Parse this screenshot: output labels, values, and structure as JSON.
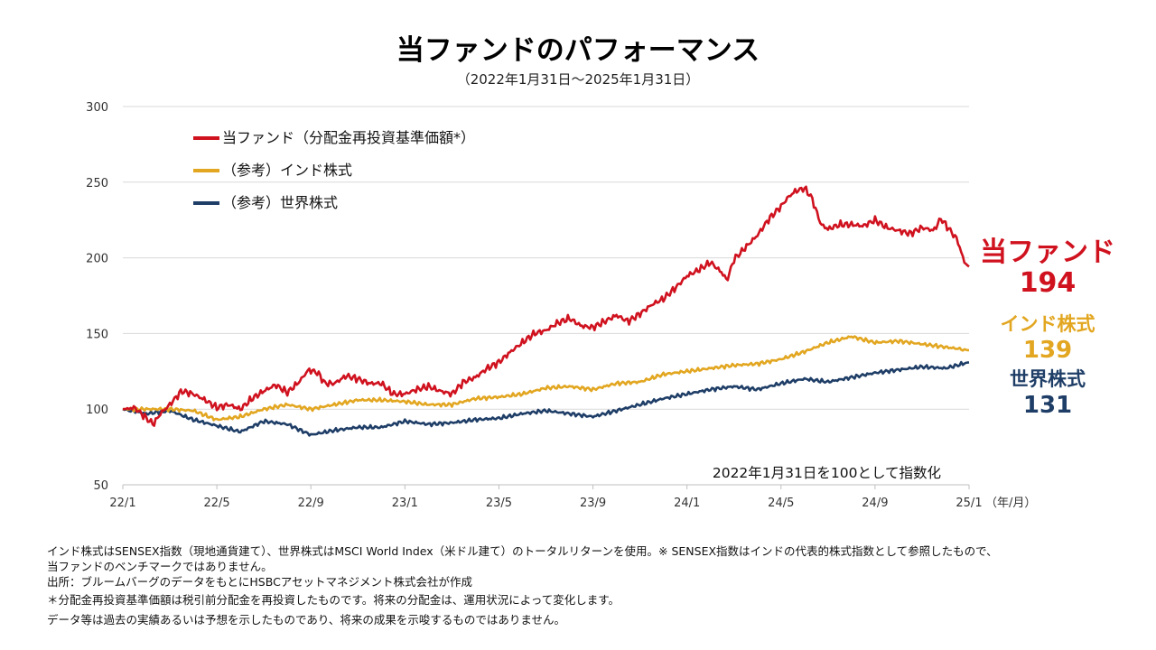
{
  "title": "当ファンドのパフォーマンス",
  "subtitle": "（2022年1月31日～2025年1月31日）",
  "colors": {
    "fund": "#d0121f",
    "india": "#e2a620",
    "world": "#1f3e67",
    "grid": "#d9d9d9",
    "axis": "#bfbfbf"
  },
  "chart_data": {
    "type": "line",
    "ylim": [
      50,
      300
    ],
    "yticks": [
      50,
      100,
      150,
      200,
      250,
      300
    ],
    "xlim": [
      0,
      36
    ],
    "xticks": [
      {
        "x": 0,
        "label": "22/1"
      },
      {
        "x": 4,
        "label": "22/5"
      },
      {
        "x": 8,
        "label": "22/9"
      },
      {
        "x": 12,
        "label": "23/1"
      },
      {
        "x": 16,
        "label": "23/5"
      },
      {
        "x": 20,
        "label": "23/9"
      },
      {
        "x": 24,
        "label": "24/1"
      },
      {
        "x": 28,
        "label": "24/5"
      },
      {
        "x": 32,
        "label": "24/9"
      },
      {
        "x": 36,
        "label": "25/1"
      }
    ],
    "xunit_label": "（年/月）",
    "note": "2022年1月31日を100として指数化",
    "series": [
      {
        "key": "fund",
        "name": "当ファンド（分配金再投資基準価額*）",
        "end_name": "当ファンド",
        "end_value": "194",
        "x": [
          0,
          0.5,
          1.0,
          1.3,
          1.6,
          2.0,
          2.5,
          3.0,
          3.5,
          4.0,
          4.5,
          5.0,
          5.5,
          6.0,
          6.5,
          7.0,
          7.5,
          7.9,
          8.3,
          8.6,
          9.0,
          9.5,
          10.0,
          10.5,
          11.0,
          11.5,
          12.0,
          12.5,
          13.0,
          13.5,
          14.0,
          14.5,
          15.0,
          15.5,
          16.0,
          16.5,
          17.0,
          17.5,
          18.0,
          18.5,
          19.0,
          19.5,
          20.0,
          20.5,
          21.0,
          21.5,
          22.0,
          22.5,
          23.0,
          23.5,
          24.0,
          24.5,
          25.0,
          25.5,
          25.7,
          26.0,
          26.5,
          27.0,
          27.5,
          28.0,
          28.3,
          28.6,
          29.0,
          29.3,
          29.7,
          30.0,
          30.5,
          31.0,
          31.5,
          32.0,
          32.5,
          33.0,
          33.5,
          34.0,
          34.5,
          34.8,
          35.2,
          35.5,
          35.8,
          36.0
        ],
        "values": [
          100,
          101,
          94,
          90,
          97,
          103,
          112,
          110,
          106,
          101,
          103,
          100,
          107,
          112,
          116,
          111,
          118,
          126,
          124,
          117,
          117,
          122,
          120,
          117,
          117,
          110,
          110,
          113,
          115,
          112,
          110,
          118,
          121,
          127,
          131,
          138,
          144,
          150,
          152,
          157,
          160,
          155,
          154,
          158,
          162,
          158,
          163,
          169,
          173,
          180,
          188,
          192,
          197,
          190,
          185,
          199,
          207,
          215,
          226,
          234,
          240,
          244,
          246,
          240,
          222,
          219,
          222,
          222,
          221,
          225,
          220,
          218,
          216,
          220,
          218,
          226,
          218,
          212,
          197,
          194
        ]
      },
      {
        "key": "india",
        "name": "（参考）インド株式",
        "end_name": "インド株式",
        "end_value": "139",
        "x": [
          0,
          1,
          2,
          3,
          4,
          5,
          6,
          7,
          8,
          9,
          10,
          11,
          12,
          13,
          14,
          15,
          16,
          17,
          18,
          19,
          20,
          21,
          22,
          23,
          24,
          25,
          26,
          27,
          28,
          29,
          30,
          31,
          32,
          33,
          34,
          35,
          36
        ],
        "values": [
          100,
          100,
          100,
          99,
          93,
          95,
          100,
          103,
          100,
          103,
          106,
          106,
          105,
          103,
          103,
          107,
          108,
          110,
          114,
          115,
          113,
          117,
          118,
          123,
          125,
          127,
          129,
          130,
          133,
          138,
          144,
          148,
          144,
          145,
          143,
          141,
          139
        ]
      },
      {
        "key": "world",
        "name": "（参考）世界株式",
        "end_name": "世界株式",
        "end_value": "131",
        "x": [
          0,
          1,
          2,
          3,
          4,
          5,
          6,
          7,
          8,
          9,
          10,
          11,
          12,
          13,
          14,
          15,
          16,
          17,
          18,
          19,
          20,
          21,
          22,
          23,
          24,
          25,
          26,
          27,
          28,
          29,
          30,
          31,
          32,
          33,
          34,
          35,
          36
        ],
        "values": [
          100,
          97,
          99,
          93,
          89,
          85,
          92,
          90,
          83,
          86,
          88,
          88,
          92,
          90,
          91,
          93,
          94,
          97,
          99,
          97,
          95,
          99,
          103,
          107,
          110,
          113,
          115,
          113,
          117,
          120,
          118,
          121,
          124,
          126,
          128,
          127,
          131
        ]
      }
    ]
  },
  "notes": [
    "インド株式はSENSEX指数（現地通貨建て）、世界株式はMSCI World Index（米ドル建て）のトータルリターンを使用。※ SENSEX指数はインドの代表的株式指数として参照したもので、",
    "当ファンドのベンチマークではありません。",
    "出所：ブルームバーグのデータをもとにHSBCアセットマネジメント株式会社が作成",
    "＊分配金再投資基準価額は税引前分配金を再投資したものです。将来の分配金は、運用状況によって変化します。",
    " データ等は過去の実績あるいは予想を示したものであり、将来の成果を示唆するものではありません。"
  ]
}
